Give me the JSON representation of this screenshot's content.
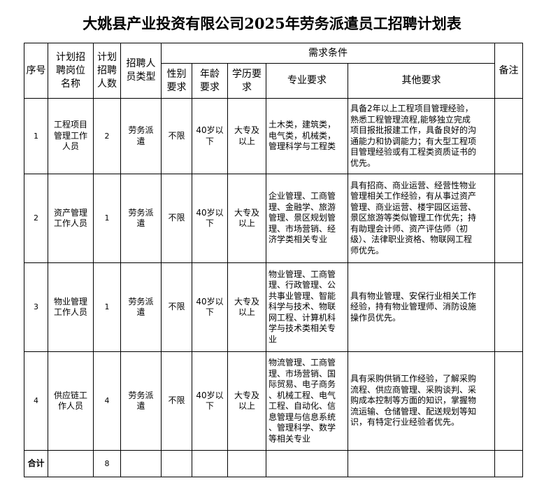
{
  "title": "大姚县产业投资有限公司2025年劳务派遣员工招聘计划表",
  "headers": {
    "seq": "序号",
    "position": "计划招\n聘岗位\n名称",
    "count": "计划\n招聘\n人数",
    "type": "招聘人\n员类型",
    "requirements": "需求条件",
    "gender": "性别\n要求",
    "age": "年龄\n要求",
    "education": "学历要\n求",
    "major": "专业要求",
    "other": "其他要求",
    "remarks": "备注"
  },
  "rows": [
    {
      "seq": "1",
      "position": "工程项目\n管理工作\n人员",
      "count": "2",
      "type": "劳务派\n遣",
      "gender": "不限",
      "age": "40岁以\n下",
      "education": "大专及\n以上",
      "major": "土木类，建筑类，\n电气类，机械类，\n管理科学与工程类",
      "other": "具备2年以上工程项目管理经验，\n熟悉工程管理流程,能够独立完成\n项目报批报建工作，具备良好的沟\n通能力和协调能力；有大型工程项\n目管理经验或有工程类资质证书的\n优先。",
      "remarks": ""
    },
    {
      "seq": "2",
      "position": "资产管理\n工作人员",
      "count": "1",
      "type": "劳务派\n遣",
      "gender": "不限",
      "age": "40岁以\n下",
      "education": "大专及\n以上",
      "major": "企业管理、工商管\n理、金融学、旅游\n管理、景区规划管\n理、市场营销、经\n济学类相关专业",
      "other": "具有招商、商业运营、经营性物业\n管理相关工作经验，有从事过资产\n管理、商业运营、楼宇园区运营、\n景区旅游等类似管理工作优先；持\n有助理会计师、资产评估师（初\n级）、法律职业资格、物联网工程\n师优先。",
      "remarks": ""
    },
    {
      "seq": "3",
      "position": "物业管理\n工作人员",
      "count": "1",
      "type": "劳务派\n遣",
      "gender": "不限",
      "age": "40岁以\n下",
      "education": "大专及\n以上",
      "major": "物业管理、工商管\n理、行政管理、公\n共事业管理、智能\n科学与技术、物联\n网工程、计算机科\n学与技术类相关专\n业",
      "other": "具有物业管理、安保行业相关工作\n经验，持有物业管理师、消防设施\n操作员优先。",
      "remarks": ""
    },
    {
      "seq": "4",
      "position": "供应链工\n作人员",
      "count": "4",
      "type": "劳务派\n遣",
      "gender": "不限",
      "age": "40岁以\n下",
      "education": "大专及\n以上",
      "major": "物流管理、工商管\n理、市场营销、国\n际贸易、电子商务\n、机械工程、电气\n工程、自动化、信\n息管理与信息系统\n、管理科学、数学\n等相关专业",
      "other": "具有采购供销工作经验，了解采购\n流程、供应商管理、采购谈判、采\n购成本控制等方面的知识，掌握物\n流运输、仓储管理、配送规划等知\n识，有特定行业经验者优先。",
      "remarks": ""
    }
  ],
  "total": {
    "label": "合计",
    "count": "8"
  }
}
